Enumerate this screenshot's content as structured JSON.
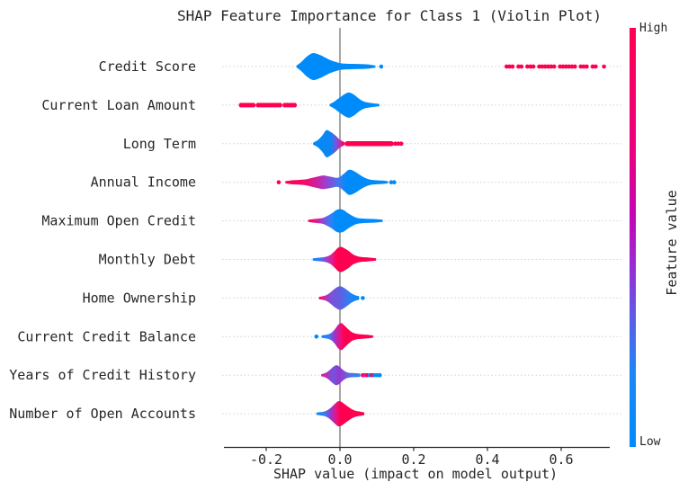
{
  "colorbar": {
    "label": "Feature value",
    "high_label": "High",
    "low_label": "Low",
    "stops": [
      [
        0,
        "#ff0051"
      ],
      [
        0.3,
        "#ea0080"
      ],
      [
        0.45,
        "#c505b5"
      ],
      [
        0.58,
        "#9430d8"
      ],
      [
        0.7,
        "#585fe8"
      ],
      [
        0.82,
        "#1e86f7"
      ],
      [
        1,
        "#008bfb"
      ]
    ]
  },
  "colors": {
    "high": "#ff0051",
    "low": "#008bfb",
    "zero_line": "#8f8f8f",
    "grid": "#cfcfcf",
    "text": "#262626",
    "spine": "#262626"
  },
  "chart_data": {
    "type": "violin",
    "title": "SHAP Feature Importance for Class 1 (Violin Plot)",
    "xlabel": "SHAP value (impact on model output)",
    "xlim": [
      -0.31,
      0.76
    ],
    "xticks": [
      -0.2,
      0.0,
      0.2,
      0.4,
      0.6
    ],
    "xtick_labels": [
      "-0.2",
      "0.0",
      "0.2",
      "0.4",
      "0.6"
    ],
    "grid": "dotted horizontal per feature",
    "legend_position": "colorbar right",
    "features": [
      {
        "label": "Credit Score",
        "violin": {
          "profile": [
            [
              -0.118,
              1
            ],
            [
              -0.105,
              5
            ],
            [
              -0.09,
              11
            ],
            [
              -0.073,
              15
            ],
            [
              -0.055,
              13
            ],
            [
              -0.04,
              10
            ],
            [
              -0.025,
              7
            ],
            [
              -0.01,
              5
            ],
            [
              0.005,
              3.5
            ],
            [
              0.03,
              3
            ],
            [
              0.055,
              2.8
            ],
            [
              0.075,
              2.4
            ],
            [
              0.096,
              1.2
            ]
          ],
          "stops": [
            [
              0,
              "#008bfb"
            ],
            [
              1,
              "#008bfb"
            ]
          ]
        },
        "strips": [
          {
            "x0": 0.452,
            "x1": 0.697,
            "h": 5,
            "color": "#ff0051",
            "style": "dotted"
          }
        ],
        "dots": [
          {
            "x": 0.112,
            "c": "#008bfb"
          },
          {
            "x": 0.716,
            "c": "#ff0051"
          }
        ]
      },
      {
        "label": "Current Loan Amount",
        "violin": {
          "profile": [
            [
              -0.028,
              1
            ],
            [
              -0.015,
              4
            ],
            [
              -0.002,
              8
            ],
            [
              0.012,
              12
            ],
            [
              0.025,
              14
            ],
            [
              0.04,
              11
            ],
            [
              0.052,
              7
            ],
            [
              0.065,
              4
            ],
            [
              0.08,
              2.6
            ],
            [
              0.107,
              1.2
            ]
          ],
          "stops": [
            [
              0,
              "#008bfb"
            ],
            [
              1,
              "#008bfb"
            ]
          ]
        },
        "strips": [
          {
            "x0": -0.268,
            "x1": -0.118,
            "h": 5.5,
            "color": "#ff0051",
            "style": "dense"
          }
        ],
        "dots": []
      },
      {
        "label": "Long Term",
        "violin": {
          "profile": [
            [
              -0.073,
              1
            ],
            [
              -0.06,
              4
            ],
            [
              -0.048,
              9
            ],
            [
              -0.037,
              15
            ],
            [
              -0.025,
              13
            ],
            [
              -0.012,
              9
            ],
            [
              -0.002,
              5
            ],
            [
              0.008,
              2.5
            ],
            [
              0.013,
              1.5
            ]
          ],
          "stops": [
            [
              0,
              "#008bfb"
            ],
            [
              0.55,
              "#0d86f2"
            ],
            [
              0.72,
              "#6a5ae0"
            ],
            [
              0.85,
              "#c427ae"
            ],
            [
              1,
              "#ff0051"
            ]
          ]
        },
        "strips": [
          {
            "x0": 0.013,
            "x1": 0.146,
            "h": 5.5,
            "color": "#ff0051",
            "style": "solid"
          },
          {
            "x0": 0.15,
            "x1": 0.172,
            "h": 5,
            "color": "#ff0051",
            "style": "dotted"
          }
        ],
        "dots": []
      },
      {
        "label": "Annual Income",
        "violin": {
          "profile": [
            [
              -0.148,
              1.2
            ],
            [
              -0.135,
              2
            ],
            [
              -0.12,
              2.4
            ],
            [
              -0.105,
              2.8
            ],
            [
              -0.09,
              3.5
            ],
            [
              -0.075,
              5
            ],
            [
              -0.06,
              6.5
            ],
            [
              -0.047,
              7.5
            ],
            [
              -0.035,
              7
            ],
            [
              -0.022,
              6
            ],
            [
              -0.01,
              5
            ],
            [
              0.0,
              6
            ],
            [
              0.012,
              10
            ],
            [
              0.025,
              14
            ],
            [
              0.04,
              12
            ],
            [
              0.055,
              8
            ],
            [
              0.068,
              5
            ],
            [
              0.082,
              3
            ],
            [
              0.1,
              2.2
            ],
            [
              0.118,
              1.8
            ],
            [
              0.13,
              1.2
            ]
          ],
          "stops": [
            [
              0,
              "#ff0051"
            ],
            [
              0.2,
              "#f20a71"
            ],
            [
              0.3,
              "#d11e9e"
            ],
            [
              0.42,
              "#8c49d8"
            ],
            [
              0.52,
              "#3f79ef"
            ],
            [
              0.6,
              "#008bfb"
            ],
            [
              1,
              "#008bfb"
            ]
          ]
        },
        "strips": [],
        "dots": [
          {
            "x": -0.166,
            "c": "#ff0051"
          },
          {
            "x": 0.139,
            "c": "#008bfb"
          },
          {
            "x": 0.147,
            "c": "#008bfb"
          }
        ]
      },
      {
        "label": "Maximum Open Credit",
        "violin": {
          "profile": [
            [
              -0.086,
              1.2
            ],
            [
              -0.072,
              2
            ],
            [
              -0.058,
              2.6
            ],
            [
              -0.045,
              3.5
            ],
            [
              -0.032,
              6
            ],
            [
              -0.02,
              9
            ],
            [
              -0.01,
              12
            ],
            [
              0.0,
              13
            ],
            [
              0.01,
              12
            ],
            [
              0.02,
              9
            ],
            [
              0.032,
              6
            ],
            [
              0.045,
              3.5
            ],
            [
              0.06,
              2.6
            ],
            [
              0.08,
              2.2
            ],
            [
              0.1,
              1.8
            ],
            [
              0.116,
              1.2
            ]
          ],
          "stops": [
            [
              0,
              "#ff0051"
            ],
            [
              0.1,
              "#e41586"
            ],
            [
              0.2,
              "#8c49d8"
            ],
            [
              0.3,
              "#2e81f5"
            ],
            [
              0.38,
              "#008bfb"
            ],
            [
              1,
              "#008bfb"
            ]
          ]
        },
        "strips": [],
        "dots": []
      },
      {
        "label": "Monthly Debt",
        "violin": {
          "profile": [
            [
              -0.074,
              1.2
            ],
            [
              -0.062,
              1.8
            ],
            [
              -0.05,
              2.2
            ],
            [
              -0.038,
              3
            ],
            [
              -0.026,
              5
            ],
            [
              -0.015,
              9
            ],
            [
              -0.005,
              13
            ],
            [
              0.004,
              14
            ],
            [
              0.014,
              12
            ],
            [
              0.025,
              9
            ],
            [
              0.036,
              5.5
            ],
            [
              0.048,
              3.5
            ],
            [
              0.06,
              2.6
            ],
            [
              0.075,
              2.2
            ],
            [
              0.098,
              1.2
            ]
          ],
          "stops": [
            [
              0,
              "#008bfb"
            ],
            [
              0.12,
              "#3f79ef"
            ],
            [
              0.2,
              "#8c49d8"
            ],
            [
              0.3,
              "#e01e93"
            ],
            [
              0.38,
              "#ff0051"
            ],
            [
              1,
              "#ff0051"
            ]
          ]
        },
        "strips": [],
        "dots": []
      },
      {
        "label": "Home Ownership",
        "violin": {
          "profile": [
            [
              -0.057,
              1.2
            ],
            [
              -0.047,
              2
            ],
            [
              -0.038,
              3
            ],
            [
              -0.028,
              5.5
            ],
            [
              -0.018,
              9
            ],
            [
              -0.008,
              12
            ],
            [
              0.002,
              13
            ],
            [
              0.012,
              11
            ],
            [
              0.022,
              8
            ],
            [
              0.032,
              5
            ],
            [
              0.042,
              3
            ],
            [
              0.052,
              2
            ]
          ],
          "stops": [
            [
              0,
              "#ff0051"
            ],
            [
              0.12,
              "#d4219f"
            ],
            [
              0.3,
              "#7b52d8"
            ],
            [
              0.55,
              "#5f5fe2"
            ],
            [
              0.75,
              "#2e7ff4"
            ],
            [
              1,
              "#008bfb"
            ]
          ]
        },
        "strips": [],
        "dots": [
          {
            "x": 0.062,
            "c": "#008bfb"
          }
        ]
      },
      {
        "label": "Current Credit Balance",
        "violin": {
          "profile": [
            [
              -0.05,
              1.2
            ],
            [
              -0.042,
              1.8
            ],
            [
              -0.033,
              2.4
            ],
            [
              -0.024,
              4
            ],
            [
              -0.014,
              8
            ],
            [
              -0.005,
              13
            ],
            [
              0.004,
              15
            ],
            [
              0.013,
              12
            ],
            [
              0.023,
              8
            ],
            [
              0.034,
              4.5
            ],
            [
              0.046,
              3
            ],
            [
              0.06,
              2.4
            ],
            [
              0.075,
              2
            ],
            [
              0.09,
              1.2
            ]
          ],
          "stops": [
            [
              0,
              "#008bfb"
            ],
            [
              0.15,
              "#3f79ef"
            ],
            [
              0.25,
              "#9737cd"
            ],
            [
              0.36,
              "#e8137e"
            ],
            [
              0.45,
              "#ff0051"
            ],
            [
              1,
              "#ff0051"
            ]
          ]
        },
        "strips": [],
        "dots": [
          {
            "x": -0.064,
            "c": "#008bfb"
          }
        ]
      },
      {
        "label": "Years of Credit History",
        "violin": {
          "profile": [
            [
              -0.051,
              1.2
            ],
            [
              -0.043,
              2
            ],
            [
              -0.035,
              3.5
            ],
            [
              -0.027,
              6
            ],
            [
              -0.019,
              9
            ],
            [
              -0.011,
              11
            ],
            [
              -0.003,
              10
            ],
            [
              0.005,
              7
            ],
            [
              0.013,
              4.5
            ],
            [
              0.021,
              3
            ],
            [
              0.03,
              2.4
            ],
            [
              0.042,
              2.2
            ],
            [
              0.055,
              1.8
            ]
          ],
          "stops": [
            [
              0,
              "#e0218f"
            ],
            [
              0.18,
              "#a13bc6"
            ],
            [
              0.32,
              "#6e55de"
            ],
            [
              0.46,
              "#9737cd"
            ],
            [
              0.6,
              "#7b52d8"
            ],
            [
              0.78,
              "#4a79e8"
            ],
            [
              1,
              "#2e81f5"
            ]
          ]
        },
        "strips": [],
        "dots": [
          {
            "x": 0.062,
            "c": "#ff0051"
          },
          {
            "x": 0.068,
            "c": "#e2179e"
          },
          {
            "x": 0.074,
            "c": "#ff0051"
          },
          {
            "x": 0.081,
            "c": "#008bfb"
          },
          {
            "x": 0.087,
            "c": "#ff0051"
          },
          {
            "x": 0.094,
            "c": "#008bfb"
          },
          {
            "x": 0.101,
            "c": "#008bfb"
          },
          {
            "x": 0.108,
            "c": "#008bfb"
          }
        ]
      },
      {
        "label": "Number of Open Accounts",
        "violin": {
          "profile": [
            [
              -0.064,
              1.2
            ],
            [
              -0.054,
              1.8
            ],
            [
              -0.044,
              2.4
            ],
            [
              -0.034,
              4
            ],
            [
              -0.024,
              7
            ],
            [
              -0.014,
              11
            ],
            [
              -0.004,
              14
            ],
            [
              0.005,
              13
            ],
            [
              0.015,
              10
            ],
            [
              0.025,
              7
            ],
            [
              0.035,
              4.5
            ],
            [
              0.045,
              3
            ],
            [
              0.055,
              2.4
            ],
            [
              0.066,
              1.4
            ]
          ],
          "stops": [
            [
              0,
              "#008bfb"
            ],
            [
              0.18,
              "#3f79ef"
            ],
            [
              0.3,
              "#9737cd"
            ],
            [
              0.42,
              "#e8137e"
            ],
            [
              0.5,
              "#ff0051"
            ],
            [
              1,
              "#ff0051"
            ]
          ]
        },
        "strips": [],
        "dots": []
      }
    ]
  }
}
